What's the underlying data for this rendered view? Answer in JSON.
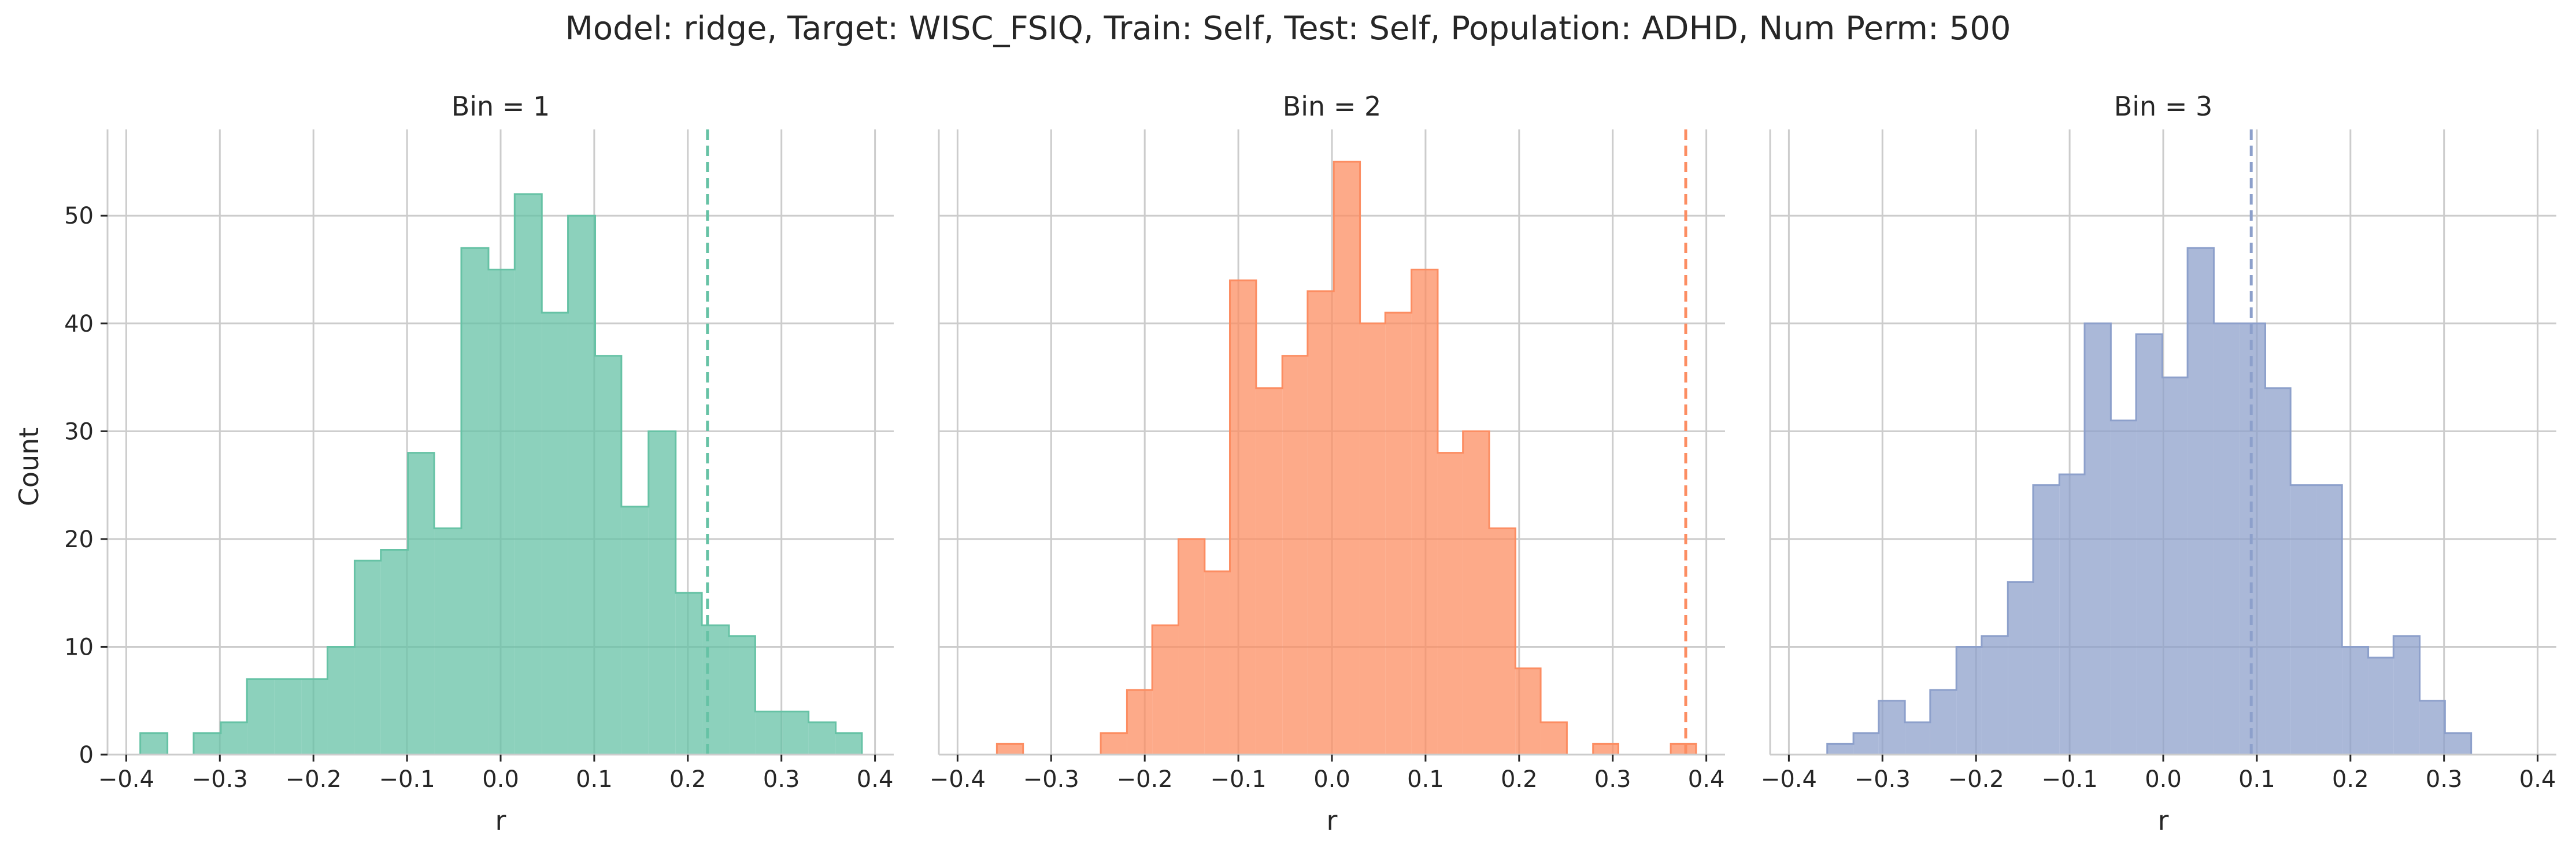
{
  "figure": {
    "title": "Model: ridge, Target: WISC_FSIQ, Train: Self, Test: Self, Population: ADHD, Num Perm: 500"
  },
  "chart_data": [
    {
      "type": "histogram",
      "title": "Bin = 1",
      "xlabel": "r",
      "ylabel": "Count",
      "xlim": [
        -0.42,
        0.42
      ],
      "ylim": [
        0,
        58
      ],
      "xticks": [
        -0.4,
        -0.3,
        -0.2,
        -0.1,
        0.0,
        0.1,
        0.2,
        0.3,
        0.4
      ],
      "xtick_labels": [
        "−0.4",
        "−0.3",
        "−0.2",
        "−0.1",
        "0.0",
        "0.1",
        "0.2",
        "0.3",
        "0.4"
      ],
      "yticks": [
        0,
        10,
        20,
        30,
        40,
        50
      ],
      "ytick_labels": [
        "0",
        "10",
        "20",
        "30",
        "40",
        "50"
      ],
      "grid": true,
      "fill_color": "#66c2a5",
      "bins": [
        [
          -0.385,
          -0.356,
          2
        ],
        [
          -0.356,
          -0.328,
          0
        ],
        [
          -0.328,
          -0.299,
          2
        ],
        [
          -0.299,
          -0.271,
          3
        ],
        [
          -0.271,
          -0.242,
          7
        ],
        [
          -0.242,
          -0.213,
          7
        ],
        [
          -0.213,
          -0.185,
          7
        ],
        [
          -0.185,
          -0.156,
          10
        ],
        [
          -0.156,
          -0.128,
          18
        ],
        [
          -0.128,
          -0.099,
          19
        ],
        [
          -0.099,
          -0.071,
          28
        ],
        [
          -0.071,
          -0.042,
          21
        ],
        [
          -0.042,
          -0.013,
          47
        ],
        [
          -0.013,
          0.015,
          45
        ],
        [
          0.015,
          0.044,
          52
        ],
        [
          0.044,
          0.072,
          41
        ],
        [
          0.072,
          0.101,
          50
        ],
        [
          0.101,
          0.129,
          37
        ],
        [
          0.129,
          0.158,
          23
        ],
        [
          0.158,
          0.187,
          30
        ],
        [
          0.187,
          0.215,
          15
        ],
        [
          0.215,
          0.244,
          12
        ],
        [
          0.244,
          0.272,
          11
        ],
        [
          0.272,
          0.301,
          4
        ],
        [
          0.301,
          0.329,
          4
        ],
        [
          0.329,
          0.358,
          3
        ],
        [
          0.358,
          0.386,
          2
        ]
      ],
      "observed_r": 0.221
    },
    {
      "type": "histogram",
      "title": "Bin = 2",
      "xlabel": "r",
      "ylabel": "",
      "xlim": [
        -0.42,
        0.42
      ],
      "ylim": [
        0,
        58
      ],
      "xticks": [
        -0.4,
        -0.3,
        -0.2,
        -0.1,
        0.0,
        0.1,
        0.2,
        0.3,
        0.4
      ],
      "xtick_labels": [
        "−0.4",
        "−0.3",
        "−0.2",
        "−0.1",
        "0.0",
        "0.1",
        "0.2",
        "0.3",
        "0.4"
      ],
      "grid": true,
      "fill_color": "#fc8d62",
      "bins": [
        [
          -0.358,
          -0.33,
          1
        ],
        [
          -0.33,
          -0.302,
          0
        ],
        [
          -0.302,
          -0.275,
          0
        ],
        [
          -0.275,
          -0.247,
          0
        ],
        [
          -0.247,
          -0.219,
          2
        ],
        [
          -0.219,
          -0.192,
          6
        ],
        [
          -0.192,
          -0.164,
          12
        ],
        [
          -0.164,
          -0.136,
          20
        ],
        [
          -0.136,
          -0.109,
          17
        ],
        [
          -0.109,
          -0.081,
          44
        ],
        [
          -0.081,
          -0.053,
          34
        ],
        [
          -0.053,
          -0.026,
          37
        ],
        [
          -0.026,
          0.002,
          43
        ],
        [
          0.002,
          0.03,
          55
        ],
        [
          0.03,
          0.057,
          40
        ],
        [
          0.057,
          0.085,
          41
        ],
        [
          0.085,
          0.113,
          45
        ],
        [
          0.113,
          0.14,
          28
        ],
        [
          0.14,
          0.168,
          30
        ],
        [
          0.168,
          0.196,
          21
        ],
        [
          0.196,
          0.223,
          8
        ],
        [
          0.223,
          0.251,
          3
        ],
        [
          0.251,
          0.279,
          0
        ],
        [
          0.279,
          0.306,
          1
        ],
        [
          0.306,
          0.334,
          0
        ],
        [
          0.334,
          0.362,
          0
        ],
        [
          0.362,
          0.389,
          1
        ]
      ],
      "observed_r": 0.378
    },
    {
      "type": "histogram",
      "title": "Bin = 3",
      "xlabel": "r",
      "ylabel": "",
      "xlim": [
        -0.42,
        0.42
      ],
      "ylim": [
        0,
        58
      ],
      "xticks": [
        -0.4,
        -0.3,
        -0.2,
        -0.1,
        0.0,
        0.1,
        0.2,
        0.3,
        0.4
      ],
      "xtick_labels": [
        "−0.4",
        "−0.3",
        "−0.2",
        "−0.1",
        "0.0",
        "0.1",
        "0.2",
        "0.3",
        "0.4"
      ],
      "grid": true,
      "fill_color": "#8da0cb",
      "bins": [
        [
          -0.386,
          -0.359,
          0
        ],
        [
          -0.359,
          -0.331,
          1
        ],
        [
          -0.331,
          -0.304,
          2
        ],
        [
          -0.304,
          -0.276,
          5
        ],
        [
          -0.276,
          -0.249,
          3
        ],
        [
          -0.249,
          -0.221,
          6
        ],
        [
          -0.221,
          -0.194,
          10
        ],
        [
          -0.194,
          -0.166,
          11
        ],
        [
          -0.166,
          -0.139,
          16
        ],
        [
          -0.139,
          -0.111,
          25
        ],
        [
          -0.111,
          -0.084,
          26
        ],
        [
          -0.084,
          -0.056,
          40
        ],
        [
          -0.056,
          -0.029,
          31
        ],
        [
          -0.029,
          -0.001,
          39
        ],
        [
          -0.001,
          0.026,
          35
        ],
        [
          0.026,
          0.054,
          47
        ],
        [
          0.054,
          0.081,
          40
        ],
        [
          0.081,
          0.109,
          40
        ],
        [
          0.109,
          0.136,
          34
        ],
        [
          0.136,
          0.164,
          25
        ],
        [
          0.164,
          0.191,
          25
        ],
        [
          0.191,
          0.219,
          10
        ],
        [
          0.219,
          0.246,
          9
        ],
        [
          0.246,
          0.274,
          11
        ],
        [
          0.274,
          0.301,
          5
        ],
        [
          0.301,
          0.329,
          2
        ]
      ],
      "observed_r": 0.094
    }
  ]
}
